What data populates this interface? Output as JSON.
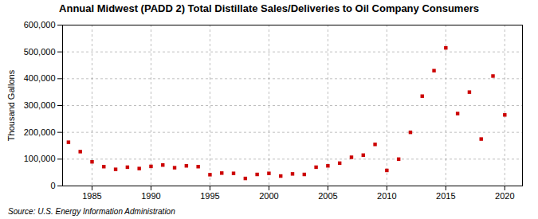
{
  "chart_data": {
    "type": "scatter",
    "title": "Annual Midwest (PADD 2) Total Distillate Sales/Deliveries to Oil Company Consumers",
    "ylabel": "Thousand Gallons",
    "source": "Source: U.S. Energy Information Administration",
    "x": [
      1983,
      1984,
      1985,
      1986,
      1987,
      1988,
      1989,
      1990,
      1991,
      1992,
      1993,
      1994,
      1995,
      1996,
      1997,
      1998,
      1999,
      2000,
      2001,
      2002,
      2003,
      2004,
      2005,
      2006,
      2007,
      2008,
      2009,
      2010,
      2011,
      2012,
      2013,
      2014,
      2015,
      2016,
      2017,
      2018,
      2019,
      2020
    ],
    "values": [
      163000,
      128000,
      90000,
      72000,
      62000,
      70000,
      65000,
      73000,
      78000,
      68000,
      75000,
      72000,
      42000,
      48000,
      47000,
      28000,
      43000,
      47000,
      37000,
      45000,
      43000,
      70000,
      75000,
      85000,
      107000,
      115000,
      155000,
      58000,
      100000,
      200000,
      335000,
      430000,
      515000,
      270000,
      350000,
      175000,
      410000,
      265000
    ],
    "color": "#cc0000",
    "marker": "square",
    "xlim": [
      1982.5,
      2021.5
    ],
    "xticks": [
      1985,
      1990,
      1995,
      2000,
      2005,
      2010,
      2015,
      2020
    ],
    "ylim": [
      0,
      600000
    ],
    "yticks": [
      0,
      {
        "value": 100000,
        "label": "100,000"
      },
      {
        "value": 200000,
        "label": "200,000"
      },
      {
        "value": 300000,
        "label": "300,000"
      },
      {
        "value": 400000,
        "label": "400,000"
      },
      {
        "value": 500000,
        "label": "500,000"
      },
      {
        "value": 600000,
        "label": "600,000"
      }
    ],
    "grid": true
  }
}
